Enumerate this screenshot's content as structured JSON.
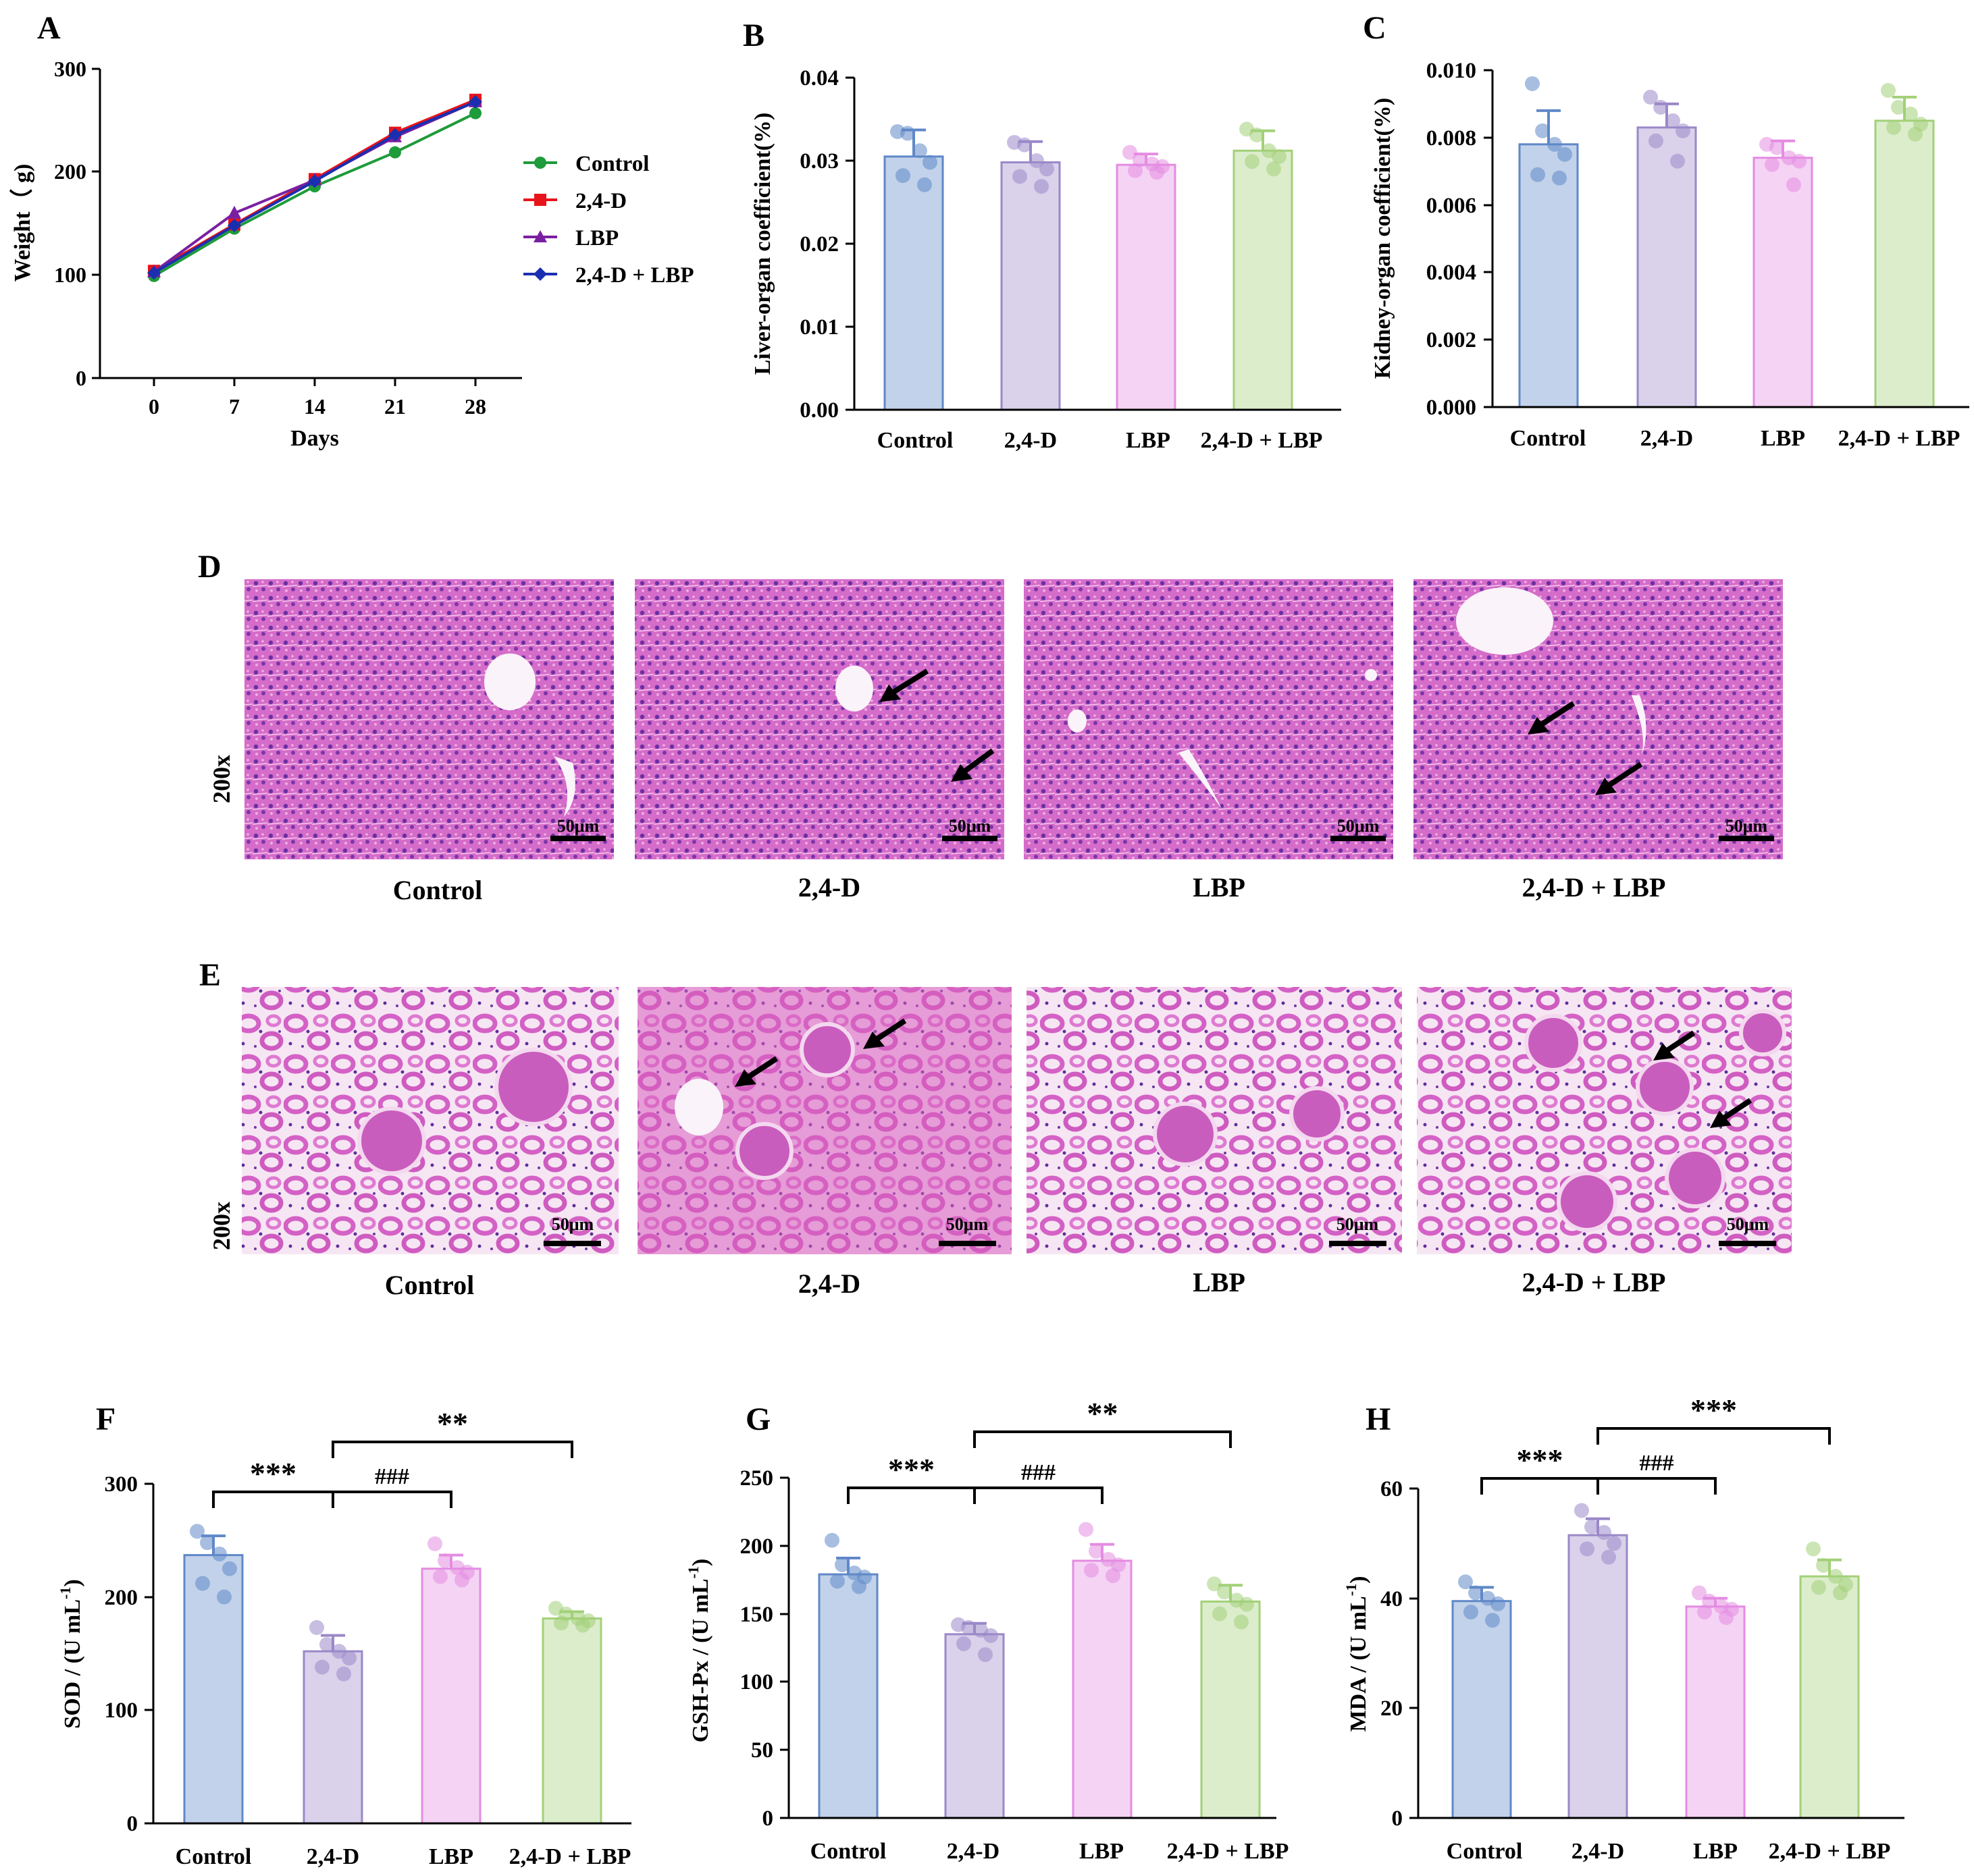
{
  "figure": {
    "colors": {
      "Control": "#5f88c8",
      "2,4-D": "#9a88c8",
      "LBP": "#e48ce2",
      "2,4-D + LBP": "#a3d078",
      "line_Control": "#1e9b3a",
      "line_2,4-D": "#e8141b",
      "line_LBP": "#7b1fa2",
      "line_2,4-D + LBP": "#1a2fb0"
    }
  },
  "chart_data": [
    {
      "panel": "A",
      "type": "line",
      "x": [
        0,
        7,
        14,
        21,
        28
      ],
      "series": [
        {
          "name": "Control",
          "values": [
            99,
            145,
            186,
            219,
            257
          ],
          "marker": "circle"
        },
        {
          "name": "2,4-D",
          "values": [
            104,
            149,
            193,
            238,
            270
          ],
          "marker": "square"
        },
        {
          "name": "LBP",
          "values": [
            103,
            160,
            192,
            234,
            268
          ],
          "marker": "triangle"
        },
        {
          "name": "2,4-D + LBP",
          "values": [
            102,
            148,
            191,
            236,
            268
          ],
          "marker": "diamond"
        }
      ],
      "xlabel": "Days",
      "ylabel": "Weight（ g)",
      "ylim": [
        0,
        300
      ],
      "yticks": [
        "0",
        "100",
        "200",
        "300"
      ],
      "xticks": [
        "0",
        "7",
        "14",
        "21",
        "28"
      ],
      "legend": "right"
    },
    {
      "panel": "B",
      "type": "bar",
      "categories": [
        "Control",
        "2,4-D",
        "LBP",
        "2,4-D + LBP"
      ],
      "values": [
        0.0305,
        0.0298,
        0.0295,
        0.0312
      ],
      "errors": [
        0.0032,
        0.0025,
        0.0013,
        0.0024
      ],
      "points": [
        [
          0.0335,
          0.0333,
          0.0312,
          0.0298,
          0.0282,
          0.0271
        ],
        [
          0.0322,
          0.0319,
          0.03,
          0.029,
          0.0281,
          0.0269
        ],
        [
          0.031,
          0.0301,
          0.0296,
          0.0293,
          0.0288,
          0.0286
        ],
        [
          0.0338,
          0.0331,
          0.0312,
          0.0305,
          0.0299,
          0.029
        ]
      ],
      "ylabel": "Liver-organ coefficient(%)",
      "ylim": [
        0,
        0.04
      ],
      "yticks": [
        "0.00",
        "0.01",
        "0.02",
        "0.03",
        "0.04"
      ]
    },
    {
      "panel": "C",
      "type": "bar",
      "categories": [
        "Control",
        "2,4-D",
        "LBP",
        "2,4-D + LBP"
      ],
      "values": [
        0.0078,
        0.0083,
        0.0074,
        0.0085
      ],
      "errors": [
        0.001,
        0.0007,
        0.0005,
        0.0007
      ],
      "points": [
        [
          0.0096,
          0.0082,
          0.0078,
          0.0075,
          0.0069,
          0.0068
        ],
        [
          0.0092,
          0.0089,
          0.0085,
          0.0082,
          0.0079,
          0.0073
        ],
        [
          0.0078,
          0.0077,
          0.0074,
          0.0073,
          0.0072,
          0.0066
        ],
        [
          0.0094,
          0.0089,
          0.0087,
          0.0084,
          0.0083,
          0.0081
        ]
      ],
      "ylabel": "Kidney-organ coefficient(%)",
      "ylim": [
        0,
        0.01
      ],
      "yticks": [
        "0.000",
        "0.002",
        "0.004",
        "0.006",
        "0.008",
        "0.010"
      ]
    },
    {
      "panel": "F",
      "type": "bar",
      "categories": [
        "Control",
        "2,4-D",
        "LBP",
        "2,4-D + LBP"
      ],
      "values": [
        237,
        152,
        225,
        181
      ],
      "errors": [
        17,
        14,
        12,
        6
      ],
      "points": [
        [
          258,
          248,
          238,
          225,
          212,
          200
        ],
        [
          173,
          158,
          152,
          146,
          138,
          132
        ],
        [
          247,
          232,
          226,
          222,
          218,
          215
        ],
        [
          190,
          185,
          181,
          179,
          177,
          175
        ]
      ],
      "ylabel": "SOD / (U mL",
      "ylim": [
        0,
        300
      ],
      "yticks": [
        "0",
        "100",
        "200",
        "300"
      ],
      "sig": [
        {
          "from": 0,
          "to": 1,
          "label": "***",
          "drop": 1
        },
        {
          "from": 1,
          "to": 2,
          "label": "###",
          "drop": 2
        },
        {
          "from": 1,
          "to": 3,
          "label": "**",
          "drop": 3
        }
      ]
    },
    {
      "panel": "G",
      "type": "bar",
      "categories": [
        "Control",
        "2,4-D",
        "LBP",
        "2,4-D + LBP"
      ],
      "values": [
        179,
        135,
        189,
        159
      ],
      "errors": [
        12,
        8,
        12,
        12
      ],
      "points": [
        [
          204,
          186,
          180,
          177,
          174,
          170
        ],
        [
          142,
          140,
          138,
          134,
          128,
          120
        ],
        [
          212,
          196,
          190,
          186,
          182,
          178
        ],
        [
          172,
          166,
          160,
          157,
          150,
          144
        ]
      ],
      "ylabel": "GSH-Px / (U mL",
      "ylim": [
        0,
        250
      ],
      "yticks": [
        "0",
        "50",
        "100",
        "150",
        "200",
        "250"
      ],
      "sig": [
        {
          "from": 0,
          "to": 1,
          "label": "***",
          "drop": 1
        },
        {
          "from": 1,
          "to": 2,
          "label": "###",
          "drop": 2
        },
        {
          "from": 1,
          "to": 3,
          "label": "**",
          "drop": 3
        }
      ]
    },
    {
      "panel": "H",
      "type": "bar",
      "categories": [
        "Control",
        "2,4-D",
        "LBP",
        "2,4-D + LBP"
      ],
      "values": [
        39.5,
        51.5,
        38.5,
        44
      ],
      "errors": [
        2.5,
        3,
        1.5,
        3
      ],
      "points": [
        [
          43,
          41,
          40,
          39,
          37.5,
          36
        ],
        [
          56,
          53,
          52,
          50,
          49,
          47.5
        ],
        [
          41,
          39.5,
          38.5,
          38,
          37.5,
          36.5
        ],
        [
          49,
          46,
          44,
          42.5,
          42,
          41
        ]
      ],
      "ylabel": "MDA / (U mL",
      "ylim": [
        0,
        60
      ],
      "yticks": [
        "0",
        "20",
        "40",
        "60"
      ],
      "sig": [
        {
          "from": 0,
          "to": 1,
          "label": "***",
          "drop": 1
        },
        {
          "from": 1,
          "to": 2,
          "label": "###",
          "drop": 2
        },
        {
          "from": 1,
          "to": 3,
          "label": "***",
          "drop": 3
        }
      ]
    }
  ],
  "unit_superscript": "-1",
  "histology": {
    "D": {
      "label": "D",
      "magnification": "200x",
      "scale": "50μm",
      "captions": [
        "Control",
        "2,4-D",
        "LBP",
        "2,4-D + LBP"
      ]
    },
    "E": {
      "label": "E",
      "magnification": "200x",
      "scale": "50μm",
      "captions": [
        "Control",
        "2,4-D",
        "LBP",
        "2,4-D + LBP"
      ]
    }
  }
}
